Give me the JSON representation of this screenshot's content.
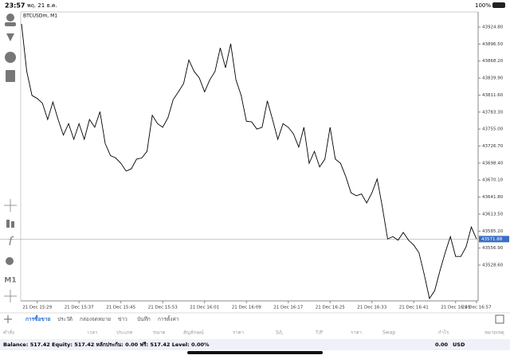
{
  "status_bar": {
    "time": "23:57",
    "date": "พฤ. 21 ธ.ค.",
    "battery": "100%"
  },
  "chart_data": {
    "type": "line",
    "title": "BTCUSDm, M1",
    "color": "#000000",
    "values": [
      43930,
      43851,
      43811,
      43806,
      43798,
      43771,
      43800,
      43771,
      43745,
      43764,
      43738,
      43764,
      43738,
      43771,
      43758,
      43784,
      43731,
      43711,
      43707,
      43698,
      43685,
      43689,
      43705,
      43707,
      43718,
      43778,
      43764,
      43758,
      43774,
      43804,
      43817,
      43831,
      43870,
      43851,
      43840,
      43817,
      43837,
      43851,
      43890,
      43857,
      43897,
      43837,
      43811,
      43768,
      43767,
      43755,
      43758,
      43802,
      43771,
      43738,
      43764,
      43758,
      43747,
      43725,
      43758,
      43698,
      43718,
      43692,
      43705,
      43758,
      43705,
      43698,
      43676,
      43649,
      43644,
      43647,
      43632,
      43649,
      43672,
      43625,
      43572,
      43576,
      43570,
      43583,
      43570,
      43562,
      43549,
      43513,
      43473,
      43486,
      43519,
      43549,
      43576,
      43543,
      43543,
      43559,
      43592,
      43572
    ],
    "xlim": [
      0,
      87
    ],
    "xticks": [
      {
        "value": 3,
        "label": "21 Dec 15:29"
      },
      {
        "value": 11,
        "label": "21 Dec 15:37"
      },
      {
        "value": 19,
        "label": "21 Dec 15:45"
      },
      {
        "value": 27,
        "label": "21 Dec 15:53"
      },
      {
        "value": 35,
        "label": "21 Dec 16:01"
      },
      {
        "value": 43,
        "label": "21 Dec 16:09"
      },
      {
        "value": 51,
        "label": "21 Dec 16:17"
      },
      {
        "value": 59,
        "label": "21 Dec 16:25"
      },
      {
        "value": 67,
        "label": "21 Dec 16:33"
      },
      {
        "value": 75,
        "label": "21 Dec 16:41"
      },
      {
        "value": 83,
        "label": "21 Dec 16:49"
      },
      {
        "value": 87,
        "label": "21 Dec 16:57"
      }
    ],
    "ylim": [
      43469,
      43950
    ],
    "yticks": [
      {
        "value": 43924.8,
        "label": "43924.80"
      },
      {
        "value": 43896.5,
        "label": "43896.50"
      },
      {
        "value": 43868.2,
        "label": "43868.20"
      },
      {
        "value": 43839.9,
        "label": "43839.90"
      },
      {
        "value": 43811.6,
        "label": "43811.60"
      },
      {
        "value": 43783.3,
        "label": "43783.30"
      },
      {
        "value": 43755,
        "label": "43755.00"
      },
      {
        "value": 43726.7,
        "label": "43726.70"
      },
      {
        "value": 43698.4,
        "label": "43698.40"
      },
      {
        "value": 43670.1,
        "label": "43670.10"
      },
      {
        "value": 43641.8,
        "label": "43641.80"
      },
      {
        "value": 43613.5,
        "label": "43613.50"
      },
      {
        "value": 43585.2,
        "label": "43585.20"
      },
      {
        "value": 43556.9,
        "label": "43556.90"
      },
      {
        "value": 43528.6,
        "label": "43528.60"
      }
    ],
    "current_price": {
      "value": 43571.88,
      "label": "43571.88"
    }
  },
  "tabs": [
    "การซื้อขาย",
    "ประวัติ",
    "กล่องจดหมาย",
    "ข่าว",
    "บันทึก",
    "การตั้งค่า"
  ],
  "columns": [
    "คำสั่ง",
    "เวลา",
    "ประเภท",
    "ขนาด",
    "สัญลักษณ์",
    "ราคา",
    "S/L",
    "T/P",
    "ราคา",
    "Swap",
    "กำไร",
    "หมายเหตุ"
  ],
  "footer": {
    "summary": "Balance: 517.42 Equity: 517.42 หลักประกัน: 0.00 ฟรี: 517.42 Level: 0.00%",
    "profit": "0.00",
    "currency": "USD"
  }
}
